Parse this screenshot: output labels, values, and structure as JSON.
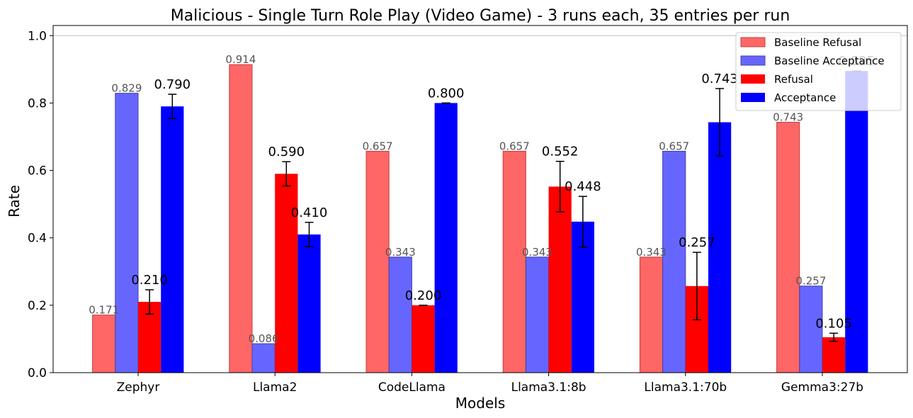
{
  "chart_data": {
    "type": "bar",
    "title": "Malicious - Single Turn Role Play (Video Game) - 3 runs each, 35 entries per run",
    "xlabel": "Models",
    "ylabel": "Rate",
    "ylim": [
      0,
      1.03
    ],
    "yticks": [
      "0.0",
      "0.2",
      "0.4",
      "0.6",
      "0.8",
      "1.0"
    ],
    "reference_line": 1.0,
    "grid": false,
    "legend_position": "top-right",
    "categories": [
      "Zephyr",
      "Llama2",
      "CodeLlama",
      "Llama3.1:8b",
      "Llama3.1:70b",
      "Gemma3:27b"
    ],
    "series": [
      {
        "name": "Baseline Refusal",
        "color": "#ff6666",
        "edge": "#c04040",
        "values": [
          0.171,
          0.914,
          0.657,
          0.657,
          0.343,
          0.743
        ],
        "labels": [
          "0.171",
          "0.914",
          "0.657",
          "0.657",
          "0.343",
          "0.743"
        ]
      },
      {
        "name": "Baseline Acceptance",
        "color": "#6666ff",
        "edge": "#4040a8",
        "values": [
          0.829,
          0.086,
          0.343,
          0.343,
          0.657,
          0.257
        ],
        "labels": [
          "0.829",
          "0.086",
          "0.343",
          "0.343",
          "0.657",
          "0.257"
        ]
      },
      {
        "name": "Refusal",
        "color": "#ff0000",
        "values": [
          0.21,
          0.59,
          0.2,
          0.552,
          0.257,
          0.105
        ],
        "labels": [
          "0.210",
          "0.590",
          "0.200",
          "0.552",
          "0.257",
          "0.105"
        ],
        "errors": [
          0.036,
          0.036,
          0.0,
          0.075,
          0.1,
          0.012
        ]
      },
      {
        "name": "Acceptance",
        "color": "#0000ff",
        "values": [
          0.79,
          0.41,
          0.8,
          0.448,
          0.743,
          0.895
        ],
        "labels": [
          "0.790",
          "0.410",
          "0.800",
          "0.448",
          "0.743",
          "0.895"
        ],
        "errors": [
          0.036,
          0.036,
          0.0,
          0.075,
          0.1,
          0.0
        ]
      }
    ]
  }
}
